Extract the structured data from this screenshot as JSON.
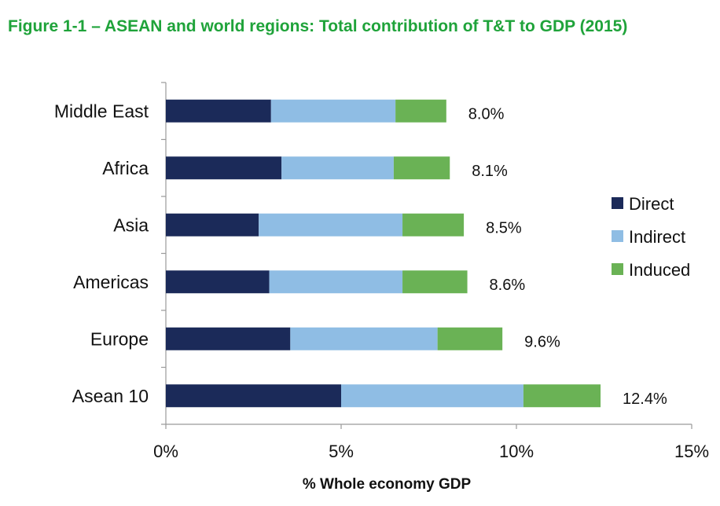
{
  "chart_data": {
    "type": "bar",
    "orientation": "horizontal",
    "stacked": true,
    "title": "Figure 1-1 – ASEAN and world regions: Total contribution of T&T to GDP (2015)",
    "xlabel": "% Whole economy GDP",
    "ylabel": "",
    "xlim": [
      0,
      15
    ],
    "xticks": [
      0,
      5,
      10,
      15
    ],
    "xtick_labels": [
      "0%",
      "5%",
      "10%",
      "15%"
    ],
    "categories": [
      "Middle East",
      "Africa",
      "Asia",
      "Americas",
      "Europe",
      "Asean 10"
    ],
    "series": [
      {
        "name": "Direct",
        "color": "#1b2a59",
        "values": [
          3.0,
          3.3,
          2.65,
          2.95,
          3.55,
          5.0
        ]
      },
      {
        "name": "Indirect",
        "color": "#8fbde4",
        "values": [
          3.55,
          3.2,
          4.1,
          3.8,
          4.2,
          5.2
        ]
      },
      {
        "name": "Induced",
        "color": "#6ab255",
        "values": [
          1.45,
          1.6,
          1.75,
          1.85,
          1.85,
          2.2
        ]
      }
    ],
    "totals": [
      "8.0%",
      "8.1%",
      "8.5%",
      "8.6%",
      "9.6%",
      "12.4%"
    ],
    "legend_position": "right",
    "grid": false
  }
}
